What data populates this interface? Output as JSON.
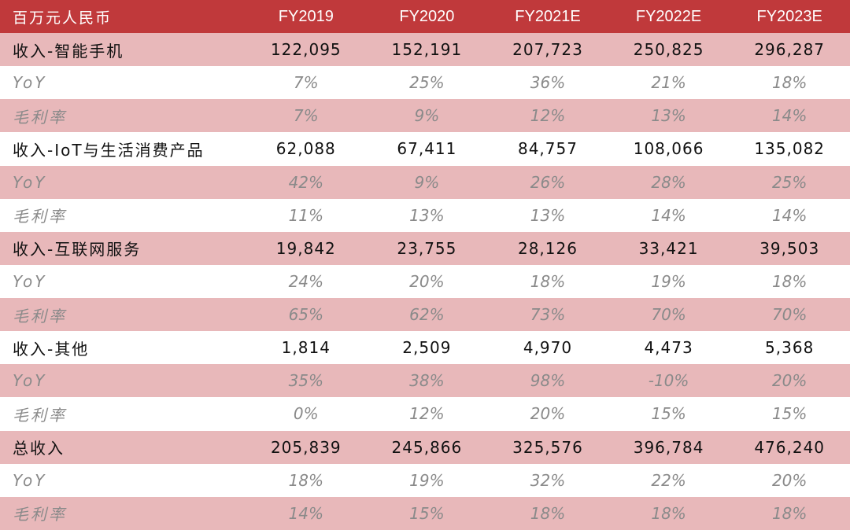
{
  "table": {
    "header": [
      "百万元人民币",
      "FY2019",
      "FY2020",
      "FY2021E",
      "FY2022E",
      "FY2023E"
    ],
    "rows": [
      {
        "label": "收入-智能手机",
        "values": [
          "122,095",
          "152,191",
          "207,723",
          "250,825",
          "296,287"
        ],
        "kind": "main",
        "bg": "pink"
      },
      {
        "label": "YoY",
        "values": [
          "7%",
          "25%",
          "36%",
          "21%",
          "18%"
        ],
        "kind": "sub",
        "bg": "white"
      },
      {
        "label": "毛利率",
        "values": [
          "7%",
          "9%",
          "12%",
          "13%",
          "14%"
        ],
        "kind": "sub",
        "bg": "pink"
      },
      {
        "label": "收入-IoT与生活消费产品",
        "values": [
          "62,088",
          "67,411",
          "84,757",
          "108,066",
          "135,082"
        ],
        "kind": "main",
        "bg": "white"
      },
      {
        "label": "YoY",
        "values": [
          "42%",
          "9%",
          "26%",
          "28%",
          "25%"
        ],
        "kind": "sub",
        "bg": "pink"
      },
      {
        "label": "毛利率",
        "values": [
          "11%",
          "13%",
          "13%",
          "14%",
          "14%"
        ],
        "kind": "sub",
        "bg": "white"
      },
      {
        "label": "收入-互联网服务",
        "values": [
          "19,842",
          "23,755",
          "28,126",
          "33,421",
          "39,503"
        ],
        "kind": "main",
        "bg": "pink"
      },
      {
        "label": "YoY",
        "values": [
          "24%",
          "20%",
          "18%",
          "19%",
          "18%"
        ],
        "kind": "sub",
        "bg": "white"
      },
      {
        "label": "毛利率",
        "values": [
          "65%",
          "62%",
          "73%",
          "70%",
          "70%"
        ],
        "kind": "sub",
        "bg": "pink"
      },
      {
        "label": "收入-其他",
        "values": [
          "1,814",
          "2,509",
          "4,970",
          "4,473",
          "5,368"
        ],
        "kind": "main",
        "bg": "white"
      },
      {
        "label": "YoY",
        "values": [
          "35%",
          "38%",
          "98%",
          "-10%",
          "20%"
        ],
        "kind": "sub",
        "bg": "pink"
      },
      {
        "label": "毛利率",
        "values": [
          "0%",
          "12%",
          "20%",
          "15%",
          "15%"
        ],
        "kind": "sub",
        "bg": "white"
      },
      {
        "label": "总收入",
        "values": [
          "205,839",
          "245,866",
          "325,576",
          "396,784",
          "476,240"
        ],
        "kind": "main",
        "bg": "pink"
      },
      {
        "label": "YoY",
        "values": [
          "18%",
          "19%",
          "32%",
          "22%",
          "20%"
        ],
        "kind": "sub",
        "bg": "white"
      },
      {
        "label": "毛利率",
        "values": [
          "14%",
          "15%",
          "18%",
          "18%",
          "18%"
        ],
        "kind": "sub",
        "bg": "pink"
      }
    ]
  },
  "colors": {
    "header_bg": "#c0393b",
    "pink_row": "#e8b8ba",
    "white_row": "#ffffff",
    "sub_text": "#8a8a8a"
  }
}
